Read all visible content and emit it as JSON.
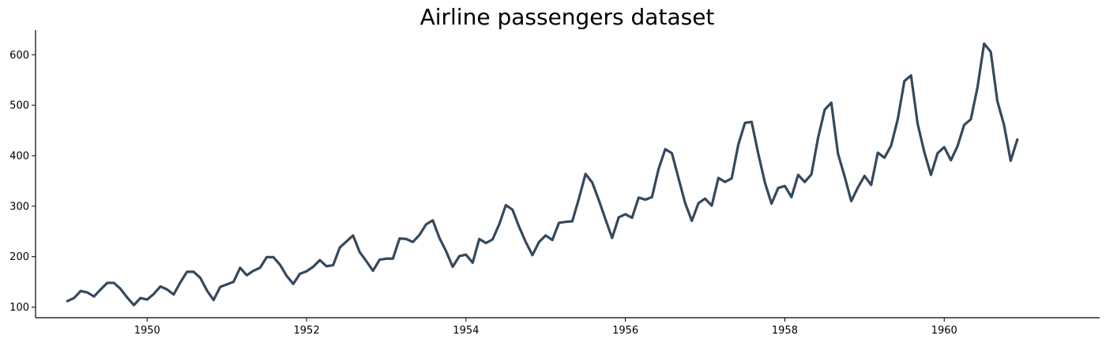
{
  "chart_data": {
    "type": "line",
    "title": "Airline passengers dataset",
    "xlabel": "",
    "ylabel": "",
    "x_start": "1949-01",
    "x_frequency": "monthly",
    "x_ticks": [
      1950,
      1952,
      1954,
      1956,
      1958,
      1960
    ],
    "y_ticks": [
      100,
      200,
      300,
      400,
      500,
      600
    ],
    "xlim": [
      1948.6,
      1961.95
    ],
    "ylim": [
      79,
      649
    ],
    "grid": false,
    "legend": "none",
    "colors": {
      "line": "#34495e",
      "axis": "#000000",
      "background": "#ffffff"
    },
    "series": [
      {
        "values": [
          112,
          118,
          132,
          129,
          121,
          135,
          148,
          148,
          136,
          119,
          104,
          118,
          115,
          126,
          141,
          135,
          125,
          149,
          170,
          170,
          158,
          133,
          114,
          140,
          145,
          150,
          178,
          163,
          172,
          178,
          199,
          199,
          184,
          162,
          146,
          166,
          171,
          180,
          193,
          181,
          183,
          218,
          230,
          242,
          209,
          191,
          172,
          194,
          196,
          196,
          236,
          235,
          229,
          243,
          264,
          272,
          237,
          211,
          180,
          201,
          204,
          188,
          235,
          227,
          234,
          264,
          302,
          293,
          259,
          229,
          203,
          229,
          242,
          233,
          267,
          269,
          270,
          315,
          364,
          347,
          312,
          274,
          237,
          278,
          284,
          277,
          317,
          313,
          318,
          374,
          413,
          405,
          355,
          306,
          271,
          306,
          315,
          301,
          356,
          348,
          355,
          422,
          465,
          467,
          404,
          347,
          305,
          336,
          340,
          318,
          362,
          348,
          363,
          435,
          491,
          505,
          404,
          359,
          310,
          337,
          360,
          342,
          406,
          396,
          420,
          472,
          548,
          559,
          463,
          407,
          362,
          405,
          417,
          391,
          419,
          461,
          472,
          535,
          622,
          606,
          508,
          461,
          390,
          432
        ]
      }
    ]
  }
}
